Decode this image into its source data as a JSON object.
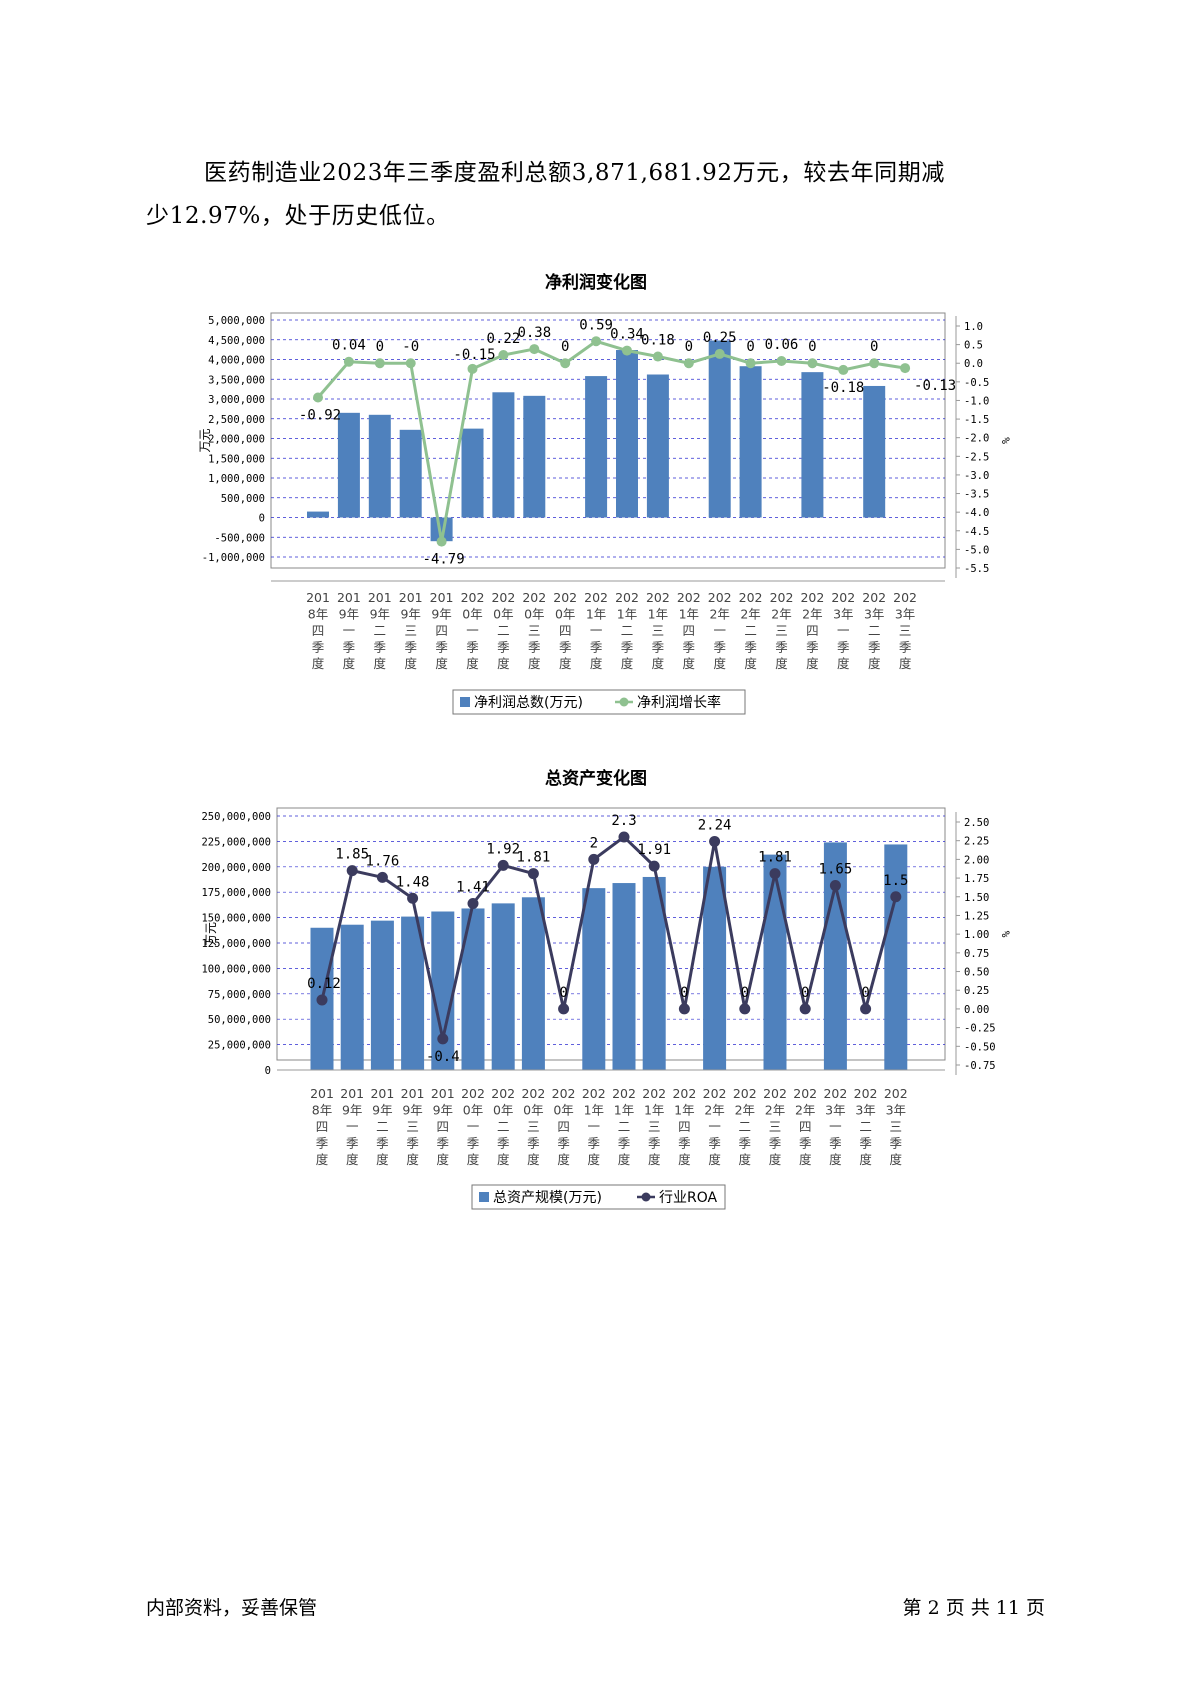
{
  "paragraph": {
    "line1": "医药制造业2023年三季度盈利总额3,871,681.92万元，较去年同期减",
    "line2": "少12.97%，处于历史低位。"
  },
  "footer": {
    "left": "内部资料，妥善保管",
    "right": "第 2 页   共 11 页"
  },
  "quarters": [
    [
      "201",
      "8年",
      "四",
      "季",
      "度"
    ],
    [
      "201",
      "9年",
      "一",
      "季",
      "度"
    ],
    [
      "201",
      "9年",
      "二",
      "季",
      "度"
    ],
    [
      "201",
      "9年",
      "三",
      "季",
      "度"
    ],
    [
      "201",
      "9年",
      "四",
      "季",
      "度"
    ],
    [
      "202",
      "0年",
      "一",
      "季",
      "度"
    ],
    [
      "202",
      "0年",
      "二",
      "季",
      "度"
    ],
    [
      "202",
      "0年",
      "三",
      "季",
      "度"
    ],
    [
      "202",
      "0年",
      "四",
      "季",
      "度"
    ],
    [
      "202",
      "1年",
      "一",
      "季",
      "度"
    ],
    [
      "202",
      "1年",
      "二",
      "季",
      "度"
    ],
    [
      "202",
      "1年",
      "三",
      "季",
      "度"
    ],
    [
      "202",
      "1年",
      "四",
      "季",
      "度"
    ],
    [
      "202",
      "2年",
      "一",
      "季",
      "度"
    ],
    [
      "202",
      "2年",
      "二",
      "季",
      "度"
    ],
    [
      "202",
      "2年",
      "三",
      "季",
      "度"
    ],
    [
      "202",
      "2年",
      "四",
      "季",
      "度"
    ],
    [
      "202",
      "3年",
      "一",
      "季",
      "度"
    ],
    [
      "202",
      "3年",
      "二",
      "季",
      "度"
    ],
    [
      "202",
      "3年",
      "三",
      "季",
      "度"
    ]
  ],
  "colors": {
    "bar": "#4f81bd",
    "line1": "#8fc190",
    "line2": "#3b3b5e",
    "grid": "#2b2bd0"
  },
  "chart_data": [
    {
      "type": "bar+line",
      "title": "净利润变化图",
      "ylabel_left": "万元",
      "ylabel_right": "%",
      "ylim_left": [
        -1000000,
        5000000
      ],
      "ylim_right": [
        -5.5,
        1.0
      ],
      "left_ticks": [
        "5,000,000",
        "4,500,000",
        "4,000,000",
        "3,500,000",
        "3,000,000",
        "2,500,000",
        "2,000,000",
        "1,500,000",
        "1,000,000",
        "500,000",
        "0",
        "-500,000",
        "-1,000,000"
      ],
      "right_ticks": [
        "1.0",
        "0.5",
        "0.0",
        "-0.5",
        "-1.0",
        "-1.5",
        "-2.0",
        "-2.5",
        "-3.0",
        "-3.5",
        "-4.0",
        "-4.5",
        "-5.0",
        "-5.5"
      ],
      "series": [
        {
          "name": "净利润总数(万元)",
          "type": "bar",
          "values": [
            150000,
            2650000,
            2600000,
            2220000,
            -600000,
            2250000,
            3170000,
            3080000,
            null,
            3580000,
            4240000,
            3620000,
            null,
            4480000,
            3830000,
            null,
            3680000,
            null,
            3330000,
            null
          ]
        },
        {
          "name": "净利润增长率",
          "type": "line",
          "values": [
            -0.92,
            0.04,
            0,
            -0.0,
            -4.79,
            -0.15,
            0.22,
            0.38,
            0,
            0.59,
            0.34,
            0.18,
            0,
            0.25,
            0,
            0.06,
            0,
            -0.18,
            0,
            -0.13
          ],
          "labels": [
            "-0.92",
            "0.04",
            "0",
            "-0",
            "-4.79",
            "-0.15",
            "0.22",
            "0.38",
            "0",
            "0.59",
            "0.34",
            "0.18",
            "0",
            "0.25",
            "0",
            "0.06",
            "0",
            "-0.18",
            "0",
            "-0.13"
          ]
        }
      ],
      "legend": [
        "净利润总数(万元)",
        "净利润增长率"
      ],
      "legend_position": "bottom"
    },
    {
      "type": "bar+line",
      "title": "总资产变化图",
      "ylabel_left": "万元",
      "ylabel_right": "%",
      "ylim_left": [
        0,
        250000000
      ],
      "ylim_right": [
        -0.75,
        2.5
      ],
      "left_ticks": [
        "250,000,000",
        "225,000,000",
        "200,000,000",
        "175,000,000",
        "150,000,000",
        "125,000,000",
        "100,000,000",
        "75,000,000",
        "50,000,000",
        "25,000,000",
        "0"
      ],
      "right_ticks": [
        "2.50",
        "2.25",
        "2.00",
        "1.75",
        "1.50",
        "1.25",
        "1.00",
        "0.75",
        "0.50",
        "0.25",
        "0.00",
        "-0.25",
        "-0.50",
        "-0.75"
      ],
      "series": [
        {
          "name": "总资产规模(万元)",
          "type": "bar",
          "values": [
            140000000,
            143000000,
            147000000,
            151000000,
            156000000,
            159000000,
            164000000,
            170000000,
            null,
            179000000,
            184000000,
            190000000,
            null,
            200000000,
            null,
            212000000,
            null,
            224000000,
            null,
            222000000
          ]
        },
        {
          "name": "行业ROA",
          "type": "line",
          "values": [
            0.12,
            1.85,
            1.76,
            1.48,
            -0.4,
            1.41,
            1.92,
            1.81,
            0,
            2,
            2.3,
            1.91,
            0,
            2.24,
            0,
            1.81,
            0,
            1.65,
            0,
            1.5
          ],
          "labels": [
            "0.12",
            "1.85",
            "1.76",
            "1.48",
            "-0.4",
            "1.41",
            "1.92",
            "1.81",
            "0",
            "2",
            "2.3",
            "1.91",
            "0",
            "2.24",
            "0",
            "1.81",
            "0",
            "1.65",
            "0",
            "1.5"
          ]
        }
      ],
      "legend": [
        "总资产规模(万元)",
        "行业ROA"
      ],
      "legend_position": "bottom"
    }
  ]
}
